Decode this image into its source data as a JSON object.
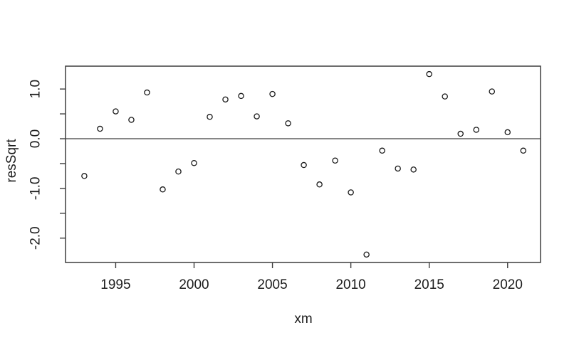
{
  "chart_data": {
    "type": "scatter",
    "title": "",
    "xlabel": "xm",
    "ylabel": "resSqrt",
    "x": [
      1993,
      1994,
      1995,
      1996,
      1997,
      1998,
      1999,
      2000,
      2001,
      2002,
      2003,
      2004,
      2005,
      2006,
      2007,
      2008,
      2009,
      2010,
      2011,
      2012,
      2013,
      2014,
      2015,
      2016,
      2017,
      2018,
      2019,
      2020,
      2021
    ],
    "y": [
      -0.75,
      0.2,
      0.55,
      0.38,
      0.93,
      -1.02,
      -0.66,
      -0.49,
      0.44,
      0.79,
      0.86,
      0.45,
      0.9,
      0.31,
      -0.53,
      -0.92,
      -0.44,
      -1.08,
      -2.33,
      -0.24,
      -0.6,
      -0.62,
      1.3,
      0.85,
      0.1,
      0.18,
      0.95,
      0.13,
      -0.24
    ],
    "xlim": [
      1991.8,
      2022.1
    ],
    "ylim": [
      -2.49,
      1.46
    ],
    "x_ticks": [
      1995,
      2000,
      2005,
      2010,
      2015,
      2020
    ],
    "x_tick_labels": [
      "1995",
      "2000",
      "2005",
      "2010",
      "2015",
      "2020"
    ],
    "y_ticks": [
      1.0,
      0.5,
      0.0,
      -0.5,
      -1.0,
      -1.5,
      -2.0
    ],
    "y_tick_labels": [
      "1.0",
      "",
      "0.0",
      "",
      "-1.0",
      "",
      "-2.0"
    ],
    "hline_y": 0,
    "marker": "open-circle",
    "grid": false,
    "legend": null,
    "colors": {
      "background": "#ffffff",
      "axis": "#3d3d3d",
      "point_stroke": "#1a1a1a",
      "text": "#1c1c1c"
    }
  }
}
